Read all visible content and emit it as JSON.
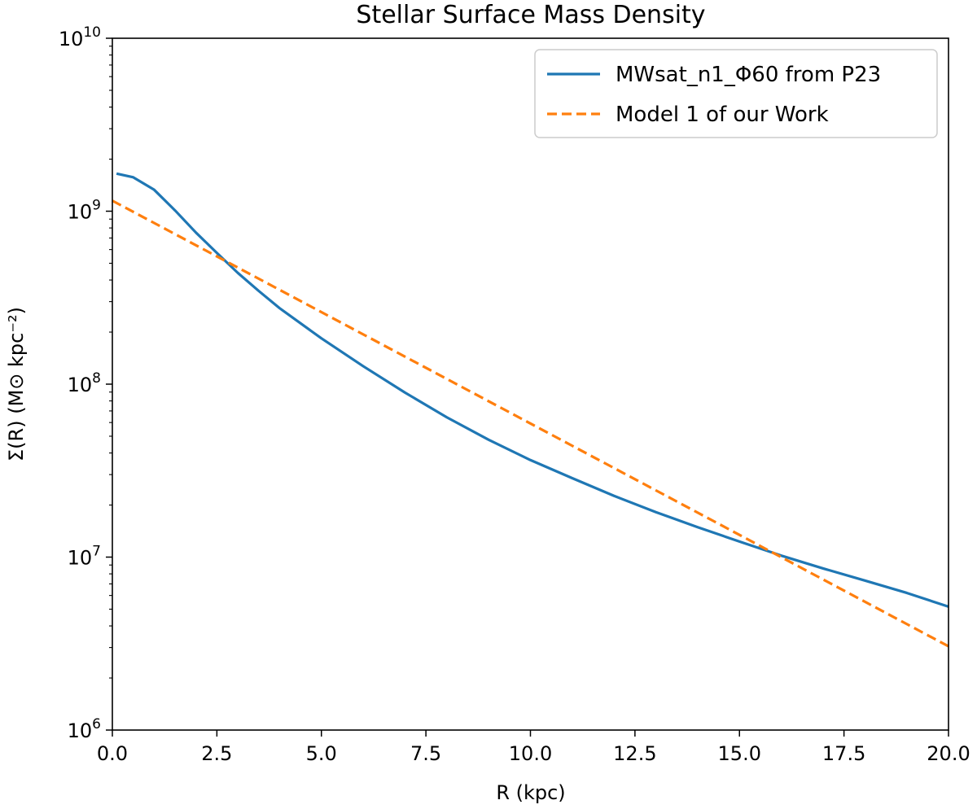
{
  "chart_data": {
    "type": "line",
    "title": "Stellar Surface Mass Density",
    "xlabel": "R (kpc)",
    "ylabel": "Σ(R) (M⊙ kpc⁻²)",
    "xlim": [
      0,
      20
    ],
    "ylim": [
      1000000,
      10000000000
    ],
    "yscale": "log",
    "grid": false,
    "legend": "top-right",
    "x_ticks": [
      0,
      2.5,
      5,
      7.5,
      10,
      12.5,
      15,
      17.5,
      20
    ],
    "x_tick_labels": [
      "0.0",
      "2.5",
      "5.0",
      "7.5",
      "10.0",
      "12.5",
      "15.0",
      "17.5",
      "20.0"
    ],
    "y_ticks": [
      1000000,
      10000000,
      100000000,
      1000000000,
      10000000000
    ],
    "y_tick_labels": [
      {
        "base": "10",
        "exp": "6"
      },
      {
        "base": "10",
        "exp": "7"
      },
      {
        "base": "10",
        "exp": "8"
      },
      {
        "base": "10",
        "exp": "9"
      },
      {
        "base": "10",
        "exp": "10"
      }
    ],
    "series": [
      {
        "name": "MWsat_n1_Φ60 from P23",
        "color": "#1f77b4",
        "style": "solid",
        "x": [
          0.1,
          0.5,
          1,
          1.5,
          2,
          2.5,
          3,
          3.5,
          4,
          5,
          6,
          7,
          8,
          9,
          10,
          11,
          12,
          13,
          14,
          15,
          16,
          17,
          18,
          19,
          20
        ],
        "y": [
          1650000000,
          1570000000,
          1330000000,
          1010000000,
          752000000,
          574000000,
          440000000,
          346000000,
          275000000,
          184000000,
          127000000,
          89400000,
          64300000,
          47700000,
          36400000,
          28600000,
          22600000,
          18200000,
          14900000,
          12300000,
          10200000,
          8600000,
          7320000,
          6210000,
          5170000
        ]
      },
      {
        "name": "Model 1 of our Work",
        "color": "#ff7f0e",
        "style": "dashed",
        "x": [
          0,
          20
        ],
        "y": [
          1150000000,
          3050000
        ]
      }
    ]
  }
}
